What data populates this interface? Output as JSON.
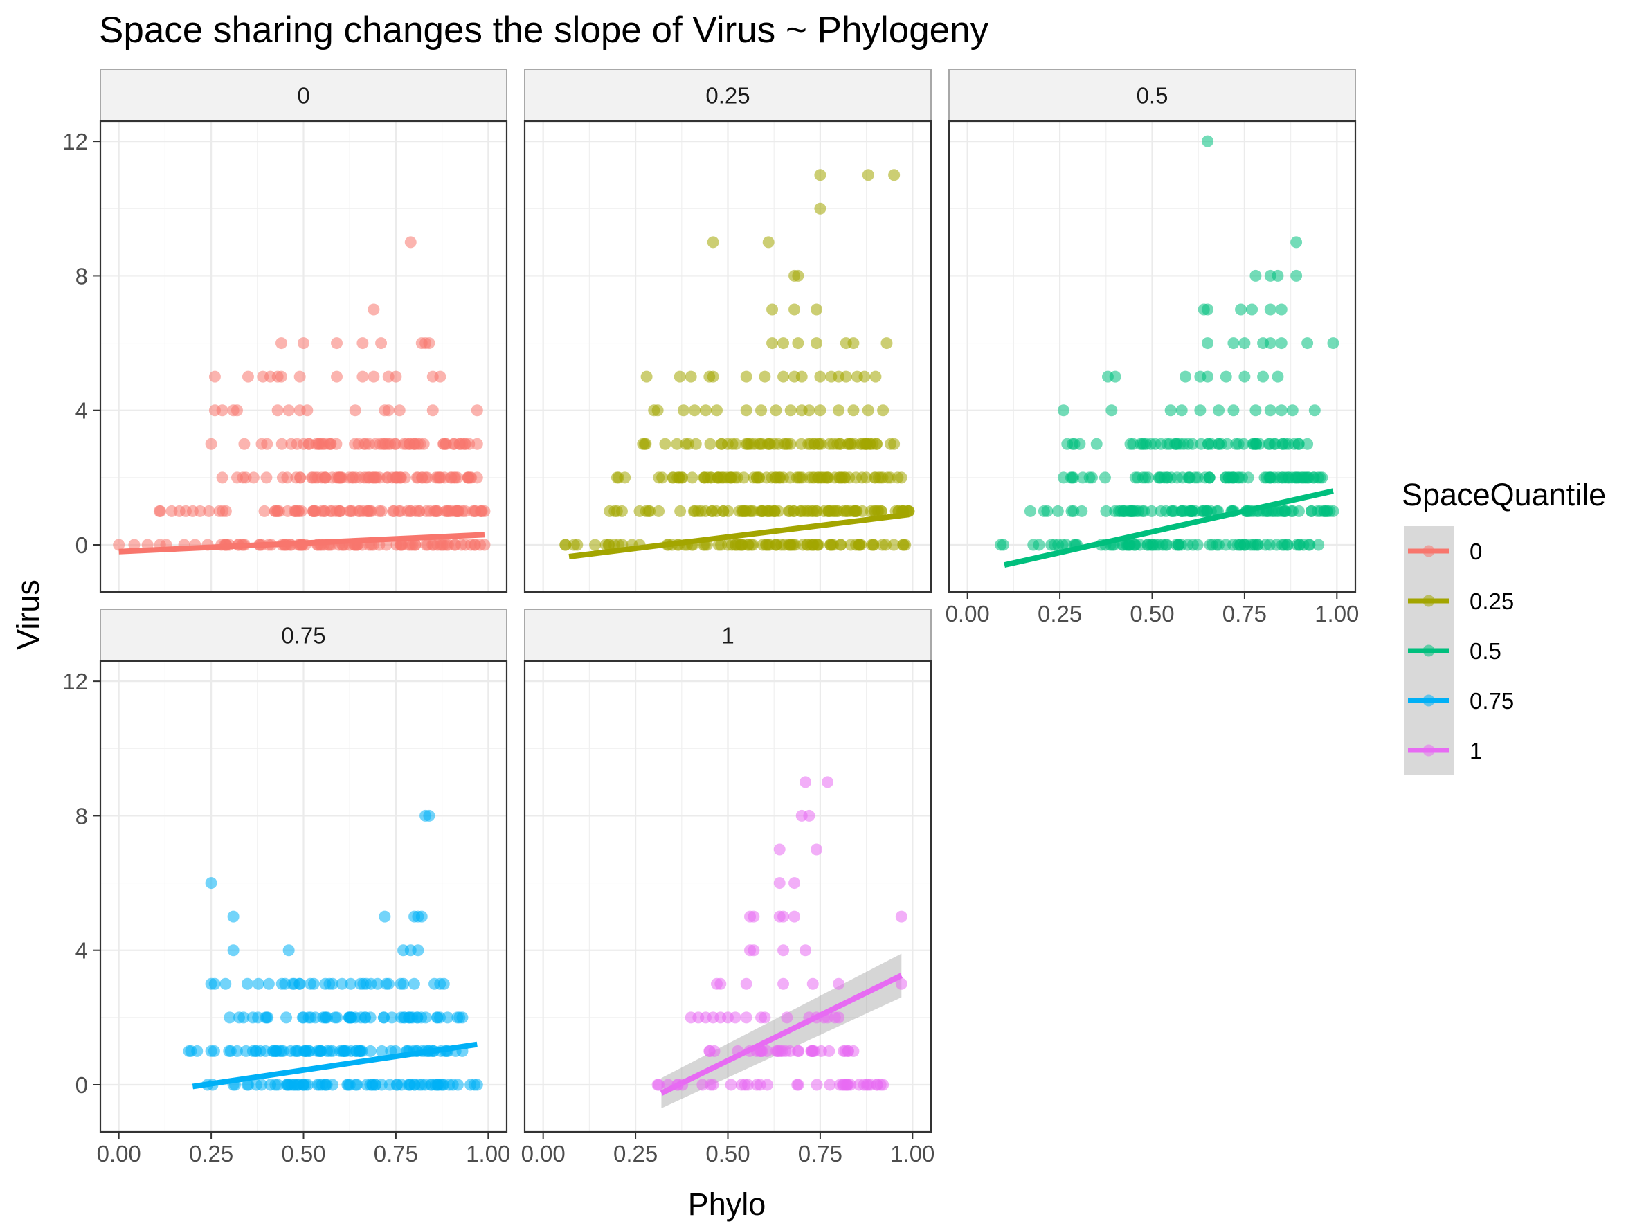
{
  "chart_data": {
    "type": "scatter",
    "title": "Space sharing changes the slope of Virus ~ Phylogeny",
    "xlabel": "Phylo",
    "ylabel": "Virus",
    "xlim": [
      -0.05,
      1.05
    ],
    "ylim": [
      -1.4,
      12.6
    ],
    "x_ticks": [
      "0.00",
      "0.25",
      "0.50",
      "0.75",
      "1.00"
    ],
    "y_ticks": [
      "0",
      "4",
      "8",
      "12"
    ],
    "grid": true,
    "facet_by": "SpaceQuantile",
    "legend": {
      "title": "SpaceQuantile",
      "position": "right",
      "entries": [
        "0",
        "0.25",
        "0.5",
        "0.75",
        "1"
      ]
    },
    "facets": [
      {
        "label": "0",
        "color": "#F8766D",
        "trend": {
          "x": [
            0.0,
            0.99
          ],
          "y": [
            -0.2,
            0.3
          ]
        },
        "points": [
          {
            "y": 0,
            "x_range": [
              0.0,
              0.99
            ],
            "n": 90
          },
          {
            "y": 1,
            "x_range": [
              0.11,
              0.99
            ],
            "n": 85
          },
          {
            "y": 2,
            "x_range": [
              0.28,
              0.97
            ],
            "n": 75
          },
          {
            "y": 3,
            "x_range": [
              0.25,
              0.97
            ],
            "n": 55
          },
          {
            "x": [
              0.26,
              0.28,
              0.31,
              0.32,
              0.43,
              0.46,
              0.49,
              0.51,
              0.64,
              0.72,
              0.73,
              0.76,
              0.85,
              0.97
            ],
            "y": [
              4,
              4,
              4,
              4,
              4,
              4,
              4,
              4,
              4,
              4,
              4,
              4,
              4,
              4
            ]
          },
          {
            "x": [
              0.26,
              0.35,
              0.39,
              0.41,
              0.43,
              0.44,
              0.49,
              0.59,
              0.66,
              0.69,
              0.73,
              0.75,
              0.85,
              0.87
            ],
            "y": [
              5,
              5,
              5,
              5,
              5,
              5,
              5,
              5,
              5,
              5,
              5,
              5,
              5,
              5
            ]
          },
          {
            "x": [
              0.44,
              0.5,
              0.59,
              0.66,
              0.71,
              0.82,
              0.83,
              0.84
            ],
            "y": [
              6,
              6,
              6,
              6,
              6,
              6,
              6,
              6
            ]
          },
          {
            "x": [
              0.69
            ],
            "y": [
              7
            ]
          },
          {
            "x": [
              0.79
            ],
            "y": [
              9
            ]
          }
        ]
      },
      {
        "label": "0.25",
        "color": "#A3A500",
        "trend": {
          "x": [
            0.07,
            0.99
          ],
          "y": [
            -0.35,
            0.9
          ]
        },
        "points": [
          {
            "y": 0,
            "x_range": [
              0.06,
              0.98
            ],
            "n": 85
          },
          {
            "y": 1,
            "x_range": [
              0.18,
              0.99
            ],
            "n": 90
          },
          {
            "y": 2,
            "x_range": [
              0.2,
              0.97
            ],
            "n": 80
          },
          {
            "y": 3,
            "x_range": [
              0.27,
              0.95
            ],
            "n": 60
          },
          {
            "x": [
              0.3,
              0.31,
              0.38,
              0.41,
              0.44,
              0.47,
              0.55,
              0.59,
              0.63,
              0.67,
              0.7,
              0.72,
              0.75,
              0.8,
              0.84,
              0.88,
              0.92
            ],
            "y": [
              4,
              4,
              4,
              4,
              4,
              4,
              4,
              4,
              4,
              4,
              4,
              4,
              4,
              4,
              4,
              4,
              4
            ]
          },
          {
            "x": [
              0.28,
              0.37,
              0.4,
              0.45,
              0.46,
              0.55,
              0.6,
              0.65,
              0.68,
              0.7,
              0.75,
              0.78,
              0.8,
              0.82,
              0.85,
              0.87,
              0.9
            ],
            "y": [
              5,
              5,
              5,
              5,
              5,
              5,
              5,
              5,
              5,
              5,
              5,
              5,
              5,
              5,
              5,
              5,
              5
            ]
          },
          {
            "x": [
              0.62,
              0.65,
              0.69,
              0.74,
              0.82,
              0.84,
              0.93
            ],
            "y": [
              6,
              6,
              6,
              6,
              6,
              6,
              6
            ]
          },
          {
            "x": [
              0.62,
              0.68,
              0.74
            ],
            "y": [
              7,
              7,
              7
            ]
          },
          {
            "x": [
              0.68,
              0.69
            ],
            "y": [
              8,
              8
            ]
          },
          {
            "x": [
              0.46,
              0.61
            ],
            "y": [
              9,
              9
            ]
          },
          {
            "x": [
              0.75
            ],
            "y": [
              10
            ]
          },
          {
            "x": [
              0.75,
              0.88,
              0.95
            ],
            "y": [
              11,
              11,
              11
            ]
          }
        ]
      },
      {
        "label": "0.5",
        "color": "#00BF7D",
        "trend": {
          "x": [
            0.1,
            0.99
          ],
          "y": [
            -0.6,
            1.6
          ]
        },
        "points": [
          {
            "y": 0,
            "x_range": [
              0.09,
              0.95
            ],
            "n": 75
          },
          {
            "y": 1,
            "x_range": [
              0.17,
              0.99
            ],
            "n": 85
          },
          {
            "y": 2,
            "x_range": [
              0.26,
              0.96
            ],
            "n": 70
          },
          {
            "y": 3,
            "x_range": [
              0.27,
              0.92
            ],
            "n": 50
          },
          {
            "x": [
              0.26,
              0.39,
              0.55,
              0.58,
              0.63,
              0.68,
              0.72,
              0.78,
              0.82,
              0.85,
              0.88,
              0.94
            ],
            "y": [
              4,
              4,
              4,
              4,
              4,
              4,
              4,
              4,
              4,
              4,
              4,
              4
            ]
          },
          {
            "x": [
              0.38,
              0.4,
              0.59,
              0.63,
              0.65,
              0.7,
              0.75,
              0.8,
              0.84
            ],
            "y": [
              5,
              5,
              5,
              5,
              5,
              5,
              5,
              5,
              5
            ]
          },
          {
            "x": [
              0.65,
              0.72,
              0.75,
              0.8,
              0.82,
              0.85,
              0.92,
              0.99
            ],
            "y": [
              6,
              6,
              6,
              6,
              6,
              6,
              6,
              6
            ]
          },
          {
            "x": [
              0.64,
              0.65,
              0.74,
              0.77,
              0.82,
              0.85
            ],
            "y": [
              7,
              7,
              7,
              7,
              7,
              7
            ]
          },
          {
            "x": [
              0.78,
              0.82,
              0.84,
              0.89
            ],
            "y": [
              8,
              8,
              8,
              8
            ]
          },
          {
            "x": [
              0.89
            ],
            "y": [
              9
            ]
          },
          {
            "x": [
              0.65
            ],
            "y": [
              12
            ]
          }
        ]
      },
      {
        "label": "0.75",
        "color": "#00B0F6",
        "trend": {
          "x": [
            0.2,
            0.97
          ],
          "y": [
            -0.05,
            1.2
          ]
        },
        "points": [
          {
            "y": 0,
            "x_range": [
              0.24,
              0.97
            ],
            "n": 70
          },
          {
            "y": 1,
            "x_range": [
              0.19,
              0.93
            ],
            "n": 75
          },
          {
            "y": 2,
            "x_range": [
              0.3,
              0.93
            ],
            "n": 50
          },
          {
            "y": 3,
            "x_range": [
              0.25,
              0.88
            ],
            "n": 30
          },
          {
            "x": [
              0.31,
              0.46,
              0.77,
              0.79,
              0.81
            ],
            "y": [
              4,
              4,
              4,
              4,
              4
            ]
          },
          {
            "x": [
              0.31,
              0.72,
              0.8,
              0.81,
              0.82
            ],
            "y": [
              5,
              5,
              5,
              5,
              5
            ]
          },
          {
            "x": [
              0.25
            ],
            "y": [
              6
            ]
          },
          {
            "x": [
              0.83,
              0.84
            ],
            "y": [
              8,
              8
            ]
          }
        ]
      },
      {
        "label": "1",
        "color": "#E76BF3",
        "trend": {
          "x": [
            0.32,
            0.97
          ],
          "y": [
            -0.25,
            3.25
          ]
        },
        "ci": {
          "x": [
            0.32,
            0.97
          ],
          "lower": [
            -0.7,
            2.6
          ],
          "upper": [
            0.2,
            3.9
          ]
        },
        "points": [
          {
            "y": 0,
            "x_range": [
              0.31,
              0.92
            ],
            "n": 35
          },
          {
            "y": 1,
            "x_range": [
              0.45,
              0.84
            ],
            "n": 30
          },
          {
            "x": [
              0.4,
              0.42,
              0.44,
              0.46,
              0.48,
              0.5,
              0.52,
              0.55,
              0.59,
              0.6,
              0.66,
              0.72,
              0.74,
              0.76,
              0.77,
              0.79,
              0.8
            ],
            "y": [
              2,
              2,
              2,
              2,
              2,
              2,
              2,
              2,
              2,
              2,
              2,
              2,
              2,
              2,
              2,
              2,
              2
            ]
          },
          {
            "x": [
              0.47,
              0.48,
              0.55,
              0.65,
              0.73,
              0.8,
              0.97
            ],
            "y": [
              3,
              3,
              3,
              3,
              3,
              3,
              3
            ]
          },
          {
            "x": [
              0.56,
              0.57,
              0.65,
              0.71
            ],
            "y": [
              4,
              4,
              4,
              4
            ]
          },
          {
            "x": [
              0.56,
              0.57,
              0.64,
              0.65,
              0.68,
              0.97
            ],
            "y": [
              5,
              5,
              5,
              5,
              5,
              5
            ]
          },
          {
            "x": [
              0.64,
              0.68
            ],
            "y": [
              6,
              6
            ]
          },
          {
            "x": [
              0.64,
              0.74
            ],
            "y": [
              7,
              7
            ]
          },
          {
            "x": [
              0.7,
              0.72
            ],
            "y": [
              8,
              8
            ]
          },
          {
            "x": [
              0.71,
              0.77
            ],
            "y": [
              9,
              9
            ]
          }
        ]
      }
    ]
  }
}
